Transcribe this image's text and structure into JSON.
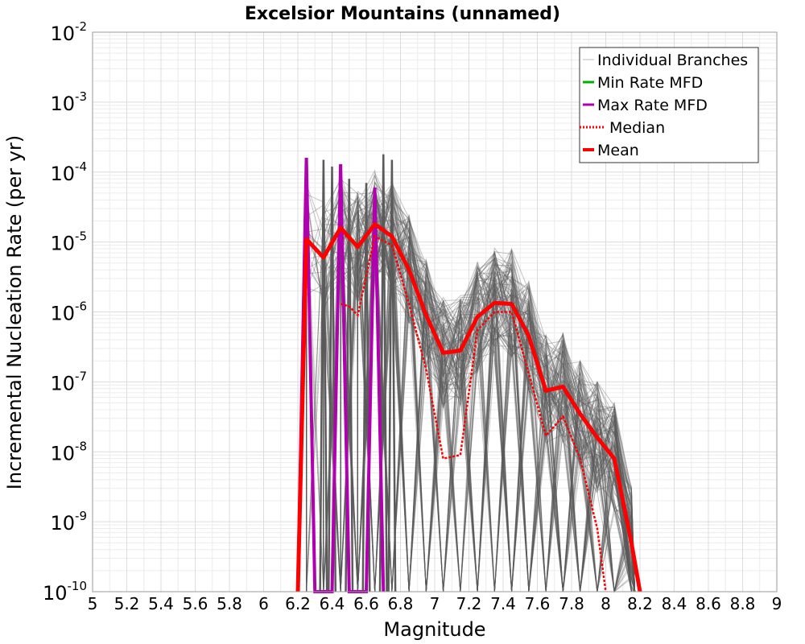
{
  "chart_data": {
    "type": "line",
    "title": "Excelsior Mountains (unnamed)",
    "xlabel": "Magnitude",
    "ylabel": "Incremental Nucleation Rate (per yr)",
    "xlim": [
      5,
      9
    ],
    "ylim": [
      1e-10,
      0.01
    ],
    "yscale": "log",
    "grid": true,
    "legend_position": "top-right",
    "x_ticks": [
      "5",
      "5.2",
      "5.4",
      "5.6",
      "5.8",
      "6",
      "6.2",
      "6.4",
      "6.6",
      "6.8",
      "7",
      "7.2",
      "7.4",
      "7.6",
      "7.8",
      "8",
      "8.2",
      "8.4",
      "8.6",
      "8.8",
      "9"
    ],
    "y_ticks": [
      {
        "base": "10",
        "exp": "-2",
        "value": 0.01
      },
      {
        "base": "10",
        "exp": "-3",
        "value": 0.001
      },
      {
        "base": "10",
        "exp": "-4",
        "value": 0.0001
      },
      {
        "base": "10",
        "exp": "-5",
        "value": 1e-05
      },
      {
        "base": "10",
        "exp": "-6",
        "value": 1e-06
      },
      {
        "base": "10",
        "exp": "-7",
        "value": 1e-07
      },
      {
        "base": "10",
        "exp": "-8",
        "value": 1e-08
      },
      {
        "base": "10",
        "exp": "-9",
        "value": 1e-09
      },
      {
        "base": "10",
        "exp": "-10",
        "value": 1e-10
      }
    ],
    "legend": [
      {
        "label": "Individual Branches",
        "color": "#b8b8b8",
        "style": "thin"
      },
      {
        "label": "Min Rate MFD",
        "color": "#00b000",
        "style": "solid"
      },
      {
        "label": "Max Rate MFD",
        "color": "#b000b0",
        "style": "solid"
      },
      {
        "label": "Median",
        "color": "#ff0000",
        "style": "dotted"
      },
      {
        "label": "Mean",
        "color": "#ff0000",
        "style": "thick"
      }
    ],
    "colors": {
      "branches": "#5a5a5a",
      "min": "#00b000",
      "max": "#b000b0",
      "median": "#ff0000",
      "mean": "#ff0000"
    },
    "series": [
      {
        "name": "Mean",
        "x": [
          6.2,
          6.25,
          6.35,
          6.45,
          6.55,
          6.65,
          6.75,
          6.85,
          6.95,
          7.05,
          7.15,
          7.25,
          7.35,
          7.45,
          7.55,
          7.65,
          7.75,
          7.85,
          7.95,
          8.05,
          8.15,
          8.2
        ],
        "y": [
          1e-10,
          1.1e-05,
          6e-06,
          1.6e-05,
          8.5e-06,
          1.8e-05,
          1.2e-05,
          4e-06,
          9e-07,
          2.6e-07,
          2.8e-07,
          8.5e-07,
          1.35e-06,
          1.3e-06,
          4.5e-07,
          7.5e-08,
          8.5e-08,
          3.5e-08,
          1.6e-08,
          8e-09,
          5e-10,
          1e-10
        ]
      },
      {
        "name": "Median",
        "x": [
          6.45,
          6.5,
          6.55,
          6.65,
          6.75,
          6.85,
          6.95,
          7.05,
          7.15,
          7.25,
          7.35,
          7.45,
          7.55,
          7.65,
          7.75,
          7.85,
          7.95,
          8.0
        ],
        "y": [
          1.3e-06,
          1.2e-06,
          9e-07,
          1.2e-05,
          9e-06,
          1.3e-06,
          1.5e-07,
          8e-09,
          9e-09,
          5.5e-07,
          1e-06,
          1e-06,
          1.3e-07,
          1.7e-08,
          3.2e-08,
          8e-09,
          8e-10,
          1e-10
        ]
      },
      {
        "name": "Max Rate MFD",
        "x": [
          6.2,
          6.25,
          6.3,
          6.4,
          6.45,
          6.5,
          6.6,
          6.65,
          6.7
        ],
        "y": [
          1e-10,
          0.00016,
          1e-10,
          1e-10,
          0.00013,
          1e-10,
          1e-10,
          6e-05,
          1e-10
        ]
      }
    ]
  }
}
